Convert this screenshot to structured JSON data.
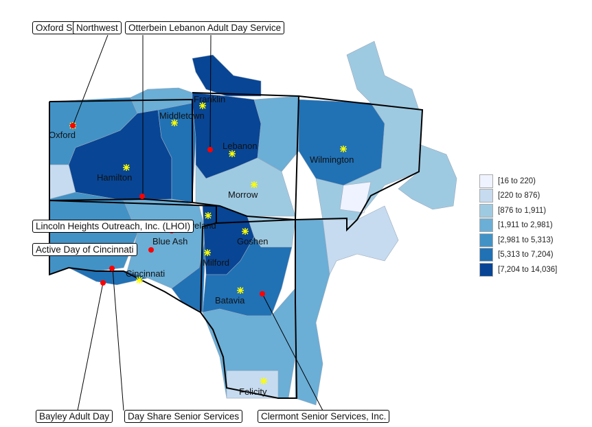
{
  "legend": {
    "classes": [
      {
        "label": "[16 to 220)",
        "color": "#eff3ff"
      },
      {
        "label": "[220 to 876)",
        "color": "#c6dbef"
      },
      {
        "label": "[876 to 1,911)",
        "color": "#9ecae1"
      },
      {
        "label": "[1,911 to 2,981)",
        "color": "#6baed6"
      },
      {
        "label": "[2,981 to 5,313)",
        "color": "#4292c6"
      },
      {
        "label": "[5,313 to 7,204)",
        "color": "#2171b5"
      },
      {
        "label": "[7,204 to 14,036]",
        "color": "#084594"
      }
    ]
  },
  "cities": [
    "Franklin",
    "Middletown",
    "Oxford",
    "Lebanon",
    "Wilmington",
    "Hamilton",
    "Morrow",
    "Goshen",
    "Blue Ash",
    "Milford",
    "Cincinnati",
    "Batavia",
    "Felicity",
    "Loveland"
  ],
  "services": [
    "Oxford Senior Citizens",
    "Northwest",
    "Otterbein Lebanon Adult Day Service",
    "Lincoln Heights Outreach, Inc. (LHOI)",
    "Active Day of Cincinnati",
    "Bayley Adult Day",
    "Day Share Senior Services",
    "Clermont Senior Services, Inc."
  ],
  "colors": {
    "service_point": "#ff0000",
    "city_marker": "#ffff00",
    "boundary": "#000000"
  }
}
